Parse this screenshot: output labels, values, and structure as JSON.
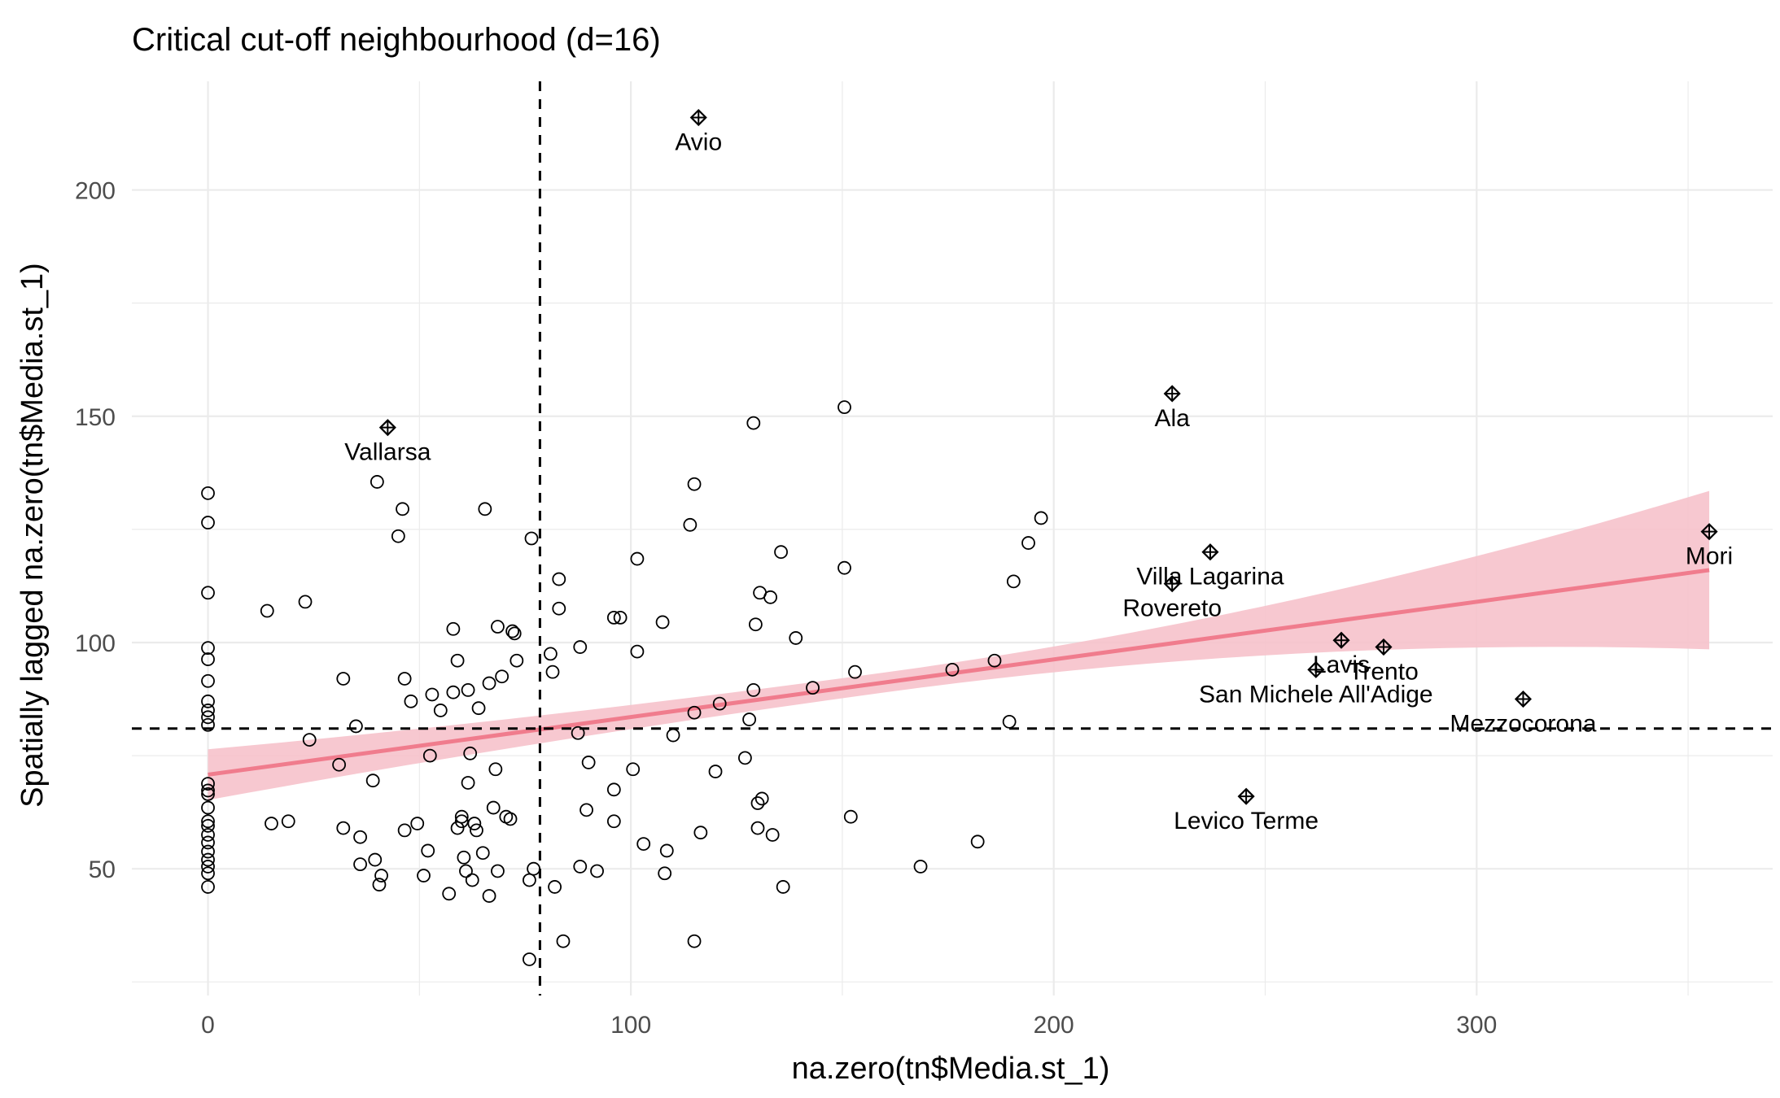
{
  "chart_data": {
    "type": "scatter",
    "title": "Critical cut-off neighbourhood (d=16)",
    "xlabel": "na.zero(tn$Media.st_1)",
    "ylabel": "Spatially lagged na.zero(tn$Media.st_1)",
    "xlim": [
      -18,
      370
    ],
    "ylim": [
      22,
      224
    ],
    "x_ticks": [
      0,
      100,
      200,
      300
    ],
    "y_ticks": [
      50,
      100,
      150,
      200
    ],
    "grid": true,
    "mean_lines": {
      "x": 78.5,
      "y": 81
    },
    "regression": {
      "x": [
        0,
        355
      ],
      "y": [
        70.8,
        116
      ],
      "ci_lower": [
        65.2,
        98.2
      ],
      "ci_upper": [
        76.8,
        133.5
      ],
      "line_color": "#f07c8d",
      "band_color": "#f6c2cb"
    },
    "influential_points": [
      {
        "name": "Avio",
        "x": 116,
        "y": 216
      },
      {
        "name": "Ala",
        "x": 228,
        "y": 155
      },
      {
        "name": "Vallarsa",
        "x": 42.5,
        "y": 147.5
      },
      {
        "name": "Mori",
        "x": 355,
        "y": 124.5
      },
      {
        "name": "Villa Lagarina",
        "x": 237,
        "y": 120
      },
      {
        "name": "Rovereto",
        "x": 228,
        "y": 113
      },
      {
        "name": "Lavis",
        "x": 268,
        "y": 100.5
      },
      {
        "name": "Trento",
        "x": 278,
        "y": 99
      },
      {
        "name": "San Michele All'Adige",
        "x": 262,
        "y": 94
      },
      {
        "name": "Mezzocorona",
        "x": 311,
        "y": 87.5
      },
      {
        "name": "Levico Terme",
        "x": 245.5,
        "y": 66
      }
    ],
    "points": [
      [
        0,
        133
      ],
      [
        0,
        126.5
      ],
      [
        0,
        111
      ],
      [
        0,
        98.8
      ],
      [
        0,
        96.3
      ],
      [
        0,
        91.5
      ],
      [
        0,
        87
      ],
      [
        0,
        85
      ],
      [
        0,
        83.5
      ],
      [
        0,
        81.8
      ],
      [
        0,
        68.8
      ],
      [
        0,
        67.3
      ],
      [
        0,
        66.5
      ],
      [
        0,
        63.5
      ],
      [
        0,
        60.5
      ],
      [
        0,
        59.5
      ],
      [
        0,
        57.5
      ],
      [
        0,
        55.8
      ],
      [
        0,
        53.8
      ],
      [
        0,
        52
      ],
      [
        0,
        50.5
      ],
      [
        0,
        49
      ],
      [
        0,
        46
      ],
      [
        14,
        107
      ],
      [
        15,
        60
      ],
      [
        19,
        60.5
      ],
      [
        24,
        78.5
      ],
      [
        23,
        109
      ],
      [
        31,
        73
      ],
      [
        32,
        92
      ],
      [
        32,
        59
      ],
      [
        35,
        81.5
      ],
      [
        36,
        57
      ],
      [
        36,
        51
      ],
      [
        39,
        69.5
      ],
      [
        39.5,
        52
      ],
      [
        40.5,
        46.5
      ],
      [
        41,
        48.5
      ],
      [
        40,
        135.5
      ],
      [
        45,
        123.5
      ],
      [
        46,
        129.5
      ],
      [
        46.5,
        58.5
      ],
      [
        46.5,
        92
      ],
      [
        48,
        87
      ],
      [
        49.5,
        60
      ],
      [
        51,
        48.5
      ],
      [
        52,
        54
      ],
      [
        52.5,
        75
      ],
      [
        53,
        88.5
      ],
      [
        55,
        85
      ],
      [
        57,
        44.5
      ],
      [
        58,
        103
      ],
      [
        58,
        89
      ],
      [
        59,
        96
      ],
      [
        59,
        59
      ],
      [
        60,
        61.5
      ],
      [
        60,
        60.5
      ],
      [
        60.5,
        52.5
      ],
      [
        61,
        49.5
      ],
      [
        61.5,
        69
      ],
      [
        61.5,
        89.5
      ],
      [
        62,
        75.5
      ],
      [
        62.5,
        47.5
      ],
      [
        63,
        60
      ],
      [
        63.5,
        58.5
      ],
      [
        64,
        85.5
      ],
      [
        65,
        53.5
      ],
      [
        65.5,
        129.5
      ],
      [
        66.5,
        91
      ],
      [
        66.5,
        44
      ],
      [
        67.5,
        63.5
      ],
      [
        68,
        72
      ],
      [
        68.5,
        103.5
      ],
      [
        68.5,
        49.5
      ],
      [
        69.5,
        92.5
      ],
      [
        70.5,
        61.5
      ],
      [
        71.5,
        61
      ],
      [
        72,
        102.5
      ],
      [
        72.5,
        102
      ],
      [
        73,
        96
      ],
      [
        76.5,
        123
      ],
      [
        76,
        47.5
      ],
      [
        76,
        30
      ],
      [
        77,
        50
      ],
      [
        81,
        97.5
      ],
      [
        81.5,
        93.5
      ],
      [
        82,
        46
      ],
      [
        83,
        114
      ],
      [
        83,
        107.5
      ],
      [
        84,
        34
      ],
      [
        87.5,
        80
      ],
      [
        88,
        50.5
      ],
      [
        88,
        99
      ],
      [
        89.5,
        63
      ],
      [
        90,
        73.5
      ],
      [
        92,
        49.5
      ],
      [
        96,
        105.5
      ],
      [
        96,
        67.5
      ],
      [
        96,
        60.5
      ],
      [
        97.5,
        105.5
      ],
      [
        100.5,
        72
      ],
      [
        101.5,
        118.5
      ],
      [
        101.5,
        98
      ],
      [
        103,
        55.5
      ],
      [
        107.5,
        104.5
      ],
      [
        108,
        49
      ],
      [
        108.5,
        54
      ],
      [
        110,
        79.5
      ],
      [
        114,
        126
      ],
      [
        115,
        135
      ],
      [
        115,
        84.5
      ],
      [
        115,
        34
      ],
      [
        116.5,
        58
      ],
      [
        120,
        71.5
      ],
      [
        121,
        86.5
      ],
      [
        127,
        74.5
      ],
      [
        128,
        83
      ],
      [
        129,
        89.5
      ],
      [
        129,
        148.5
      ],
      [
        129.5,
        104
      ],
      [
        130,
        64.5
      ],
      [
        130,
        59
      ],
      [
        130.5,
        111
      ],
      [
        131,
        65.5
      ],
      [
        133,
        110
      ],
      [
        133.5,
        57.5
      ],
      [
        135.5,
        120
      ],
      [
        136,
        46
      ],
      [
        139,
        101
      ],
      [
        143,
        90
      ],
      [
        150.5,
        116.5
      ],
      [
        150.5,
        152
      ],
      [
        152,
        61.5
      ],
      [
        153,
        93.5
      ],
      [
        168.5,
        50.5
      ],
      [
        176,
        94
      ],
      [
        182,
        56
      ],
      [
        186,
        96
      ],
      [
        189.5,
        82.5
      ],
      [
        190.5,
        113.5
      ],
      [
        194,
        122
      ],
      [
        197,
        127.5
      ]
    ]
  }
}
